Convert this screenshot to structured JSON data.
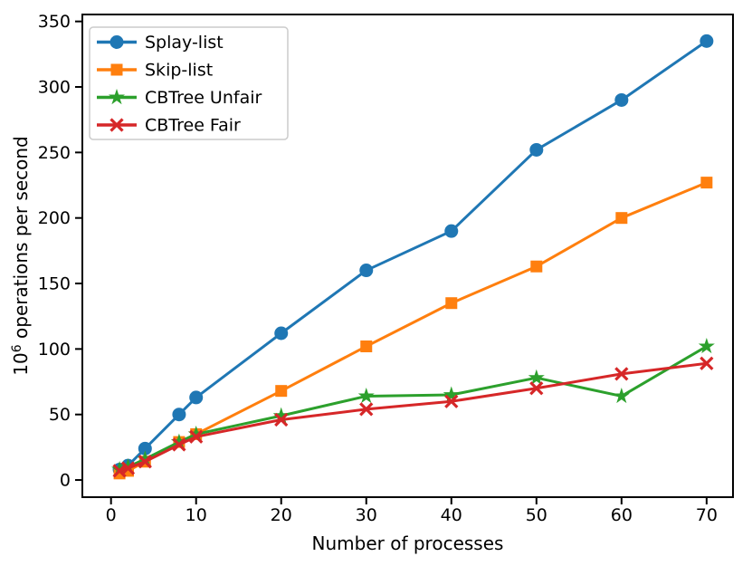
{
  "figure": {
    "background": "#ffffff",
    "axis_color": "#000000",
    "legend_border_color": "#cccccc",
    "legend_background": "#ffffff"
  },
  "chart_data": {
    "type": "line",
    "title": "",
    "xlabel": "Number of processes",
    "ylabel": "10^6 operations per second",
    "ylabel_parts": {
      "base": "10",
      "exponent": "6",
      "rest": " operations per second"
    },
    "x": [
      1,
      2,
      4,
      8,
      10,
      20,
      30,
      40,
      50,
      60,
      70
    ],
    "series": [
      {
        "name": "Splay-list",
        "color": "#1f77b4",
        "marker": "circle",
        "values": [
          8,
          11,
          24,
          50,
          63,
          112,
          160,
          190,
          252,
          290,
          335
        ]
      },
      {
        "name": "Skip-list",
        "color": "#ff7f0e",
        "marker": "square",
        "values": [
          5,
          7,
          14,
          29,
          35,
          68,
          102,
          135,
          163,
          200,
          227
        ]
      },
      {
        "name": "CBTree Unfair",
        "color": "#2ca02c",
        "marker": "star",
        "values": [
          8,
          10,
          16,
          29,
          35,
          49,
          64,
          65,
          78,
          64,
          102
        ]
      },
      {
        "name": "CBTree Fair",
        "color": "#d62728",
        "marker": "x",
        "values": [
          7,
          9,
          14,
          27,
          33,
          46,
          54,
          60,
          70,
          81,
          89
        ]
      }
    ],
    "xticks": {
      "values": [
        0,
        10,
        20,
        30,
        40,
        50,
        60,
        70
      ],
      "labels": [
        "0",
        "10",
        "20",
        "30",
        "40",
        "50",
        "60",
        "70"
      ]
    },
    "yticks": {
      "values": [
        0,
        50,
        100,
        150,
        200,
        250,
        300,
        350
      ],
      "labels": [
        "0",
        "50",
        "100",
        "150",
        "200",
        "250",
        "300",
        "350"
      ]
    },
    "xlim": [
      -3.37,
      73.1
    ],
    "ylim": [
      -13.1,
      355.3
    ],
    "grid": false,
    "legend": {
      "position": "upper left",
      "entries": [
        "Splay-list",
        "Skip-list",
        "CBTree Unfair",
        "CBTree Fair"
      ]
    }
  }
}
